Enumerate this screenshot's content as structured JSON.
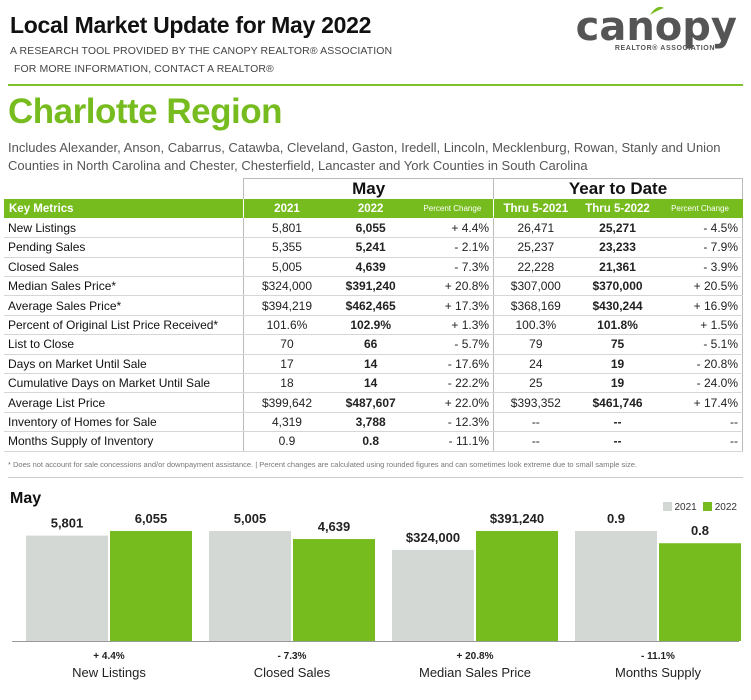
{
  "header": {
    "title": "Local Market Update for May 2022",
    "subtitle1": "A RESEARCH TOOL PROVIDED BY THE CANOPY REALTOR® ASSOCIATION",
    "subtitle2": "FOR MORE INFORMATION, CONTACT A REALTOR®",
    "logo_word": "canopy",
    "logo_sub": "REALTOR® ASSOCIATION"
  },
  "region": {
    "name": "Charlotte Region",
    "includes": "Includes Alexander, Anson, Cabarrus, Catawba, Cleveland, Gaston, Iredell, Lincoln, Mecklenburg, Rowan, Stanly and Union Counties in North Carolina and Chester, Chesterfield, Lancaster and York Counties in South Carolina"
  },
  "table": {
    "group_may": "May",
    "group_ytd": "Year to Date",
    "col_key": "Key Metrics",
    "col_2021": "2021",
    "col_2022": "2022",
    "col_pct": "Percent Change",
    "col_ytd2021": "Thru 5-2021",
    "col_ytd2022": "Thru 5-2022",
    "col_ytdpct": "Percent Change",
    "rows": [
      {
        "label": "New Listings",
        "m2021": "5,801",
        "m2022": "6,055",
        "mpct": "+ 4.4%",
        "y2021": "26,471",
        "y2022": "25,271",
        "ypct": "- 4.5%"
      },
      {
        "label": "Pending Sales",
        "m2021": "5,355",
        "m2022": "5,241",
        "mpct": "- 2.1%",
        "y2021": "25,237",
        "y2022": "23,233",
        "ypct": "- 7.9%"
      },
      {
        "label": "Closed Sales",
        "m2021": "5,005",
        "m2022": "4,639",
        "mpct": "- 7.3%",
        "y2021": "22,228",
        "y2022": "21,361",
        "ypct": "- 3.9%"
      },
      {
        "label": "Median Sales Price*",
        "m2021": "$324,000",
        "m2022": "$391,240",
        "mpct": "+ 20.8%",
        "y2021": "$307,000",
        "y2022": "$370,000",
        "ypct": "+ 20.5%"
      },
      {
        "label": "Average Sales Price*",
        "m2021": "$394,219",
        "m2022": "$462,465",
        "mpct": "+ 17.3%",
        "y2021": "$368,169",
        "y2022": "$430,244",
        "ypct": "+ 16.9%"
      },
      {
        "label": "Percent of Original List Price Received*",
        "m2021": "101.6%",
        "m2022": "102.9%",
        "mpct": "+ 1.3%",
        "y2021": "100.3%",
        "y2022": "101.8%",
        "ypct": "+ 1.5%"
      },
      {
        "label": "List to Close",
        "m2021": "70",
        "m2022": "66",
        "mpct": "- 5.7%",
        "y2021": "79",
        "y2022": "75",
        "ypct": "- 5.1%"
      },
      {
        "label": "Days on Market Until Sale",
        "m2021": "17",
        "m2022": "14",
        "mpct": "- 17.6%",
        "y2021": "24",
        "y2022": "19",
        "ypct": "- 20.8%"
      },
      {
        "label": "Cumulative Days on Market Until Sale",
        "m2021": "18",
        "m2022": "14",
        "mpct": "- 22.2%",
        "y2021": "25",
        "y2022": "19",
        "ypct": "- 24.0%"
      },
      {
        "label": "Average List Price",
        "m2021": "$399,642",
        "m2022": "$487,607",
        "mpct": "+ 22.0%",
        "y2021": "$393,352",
        "y2022": "$461,746",
        "ypct": "+ 17.4%"
      },
      {
        "label": "Inventory of Homes for Sale",
        "m2021": "4,319",
        "m2022": "3,788",
        "mpct": "- 12.3%",
        "y2021": "--",
        "y2022": "--",
        "ypct": "--"
      },
      {
        "label": "Months Supply of Inventory",
        "m2021": "0.9",
        "m2022": "0.8",
        "mpct": "- 11.1%",
        "y2021": "--",
        "y2022": "--",
        "ypct": "--"
      }
    ]
  },
  "footnote": "* Does not account for sale concessions and/or downpayment assistance.  |  Percent changes are calculated using rounded figures and can sometimes look extreme due to small sample size.",
  "chart_data": {
    "type": "bar",
    "title": "May",
    "legend": [
      "2021",
      "2022"
    ],
    "colors": {
      "2021": "#d3d8d5",
      "2022": "#77bc1f"
    },
    "groups": [
      {
        "name": "New Listings",
        "v2021": 5801,
        "v2022": 6055,
        "label2021": "5,801",
        "label2022": "6,055",
        "pct": "+ 4.4%"
      },
      {
        "name": "Closed Sales",
        "v2021": 5005,
        "v2022": 4639,
        "label2021": "5,005",
        "label2022": "4,639",
        "pct": "- 7.3%"
      },
      {
        "name": "Median Sales Price",
        "v2021": 324000,
        "v2022": 391240,
        "label2021": "$324,000",
        "label2022": "$391,240",
        "pct": "+ 20.8%"
      },
      {
        "name": "Months Supply",
        "v2021": 0.9,
        "v2022": 0.8,
        "label2021": "0.9",
        "label2022": "0.8",
        "pct": "- 11.1%"
      }
    ]
  }
}
